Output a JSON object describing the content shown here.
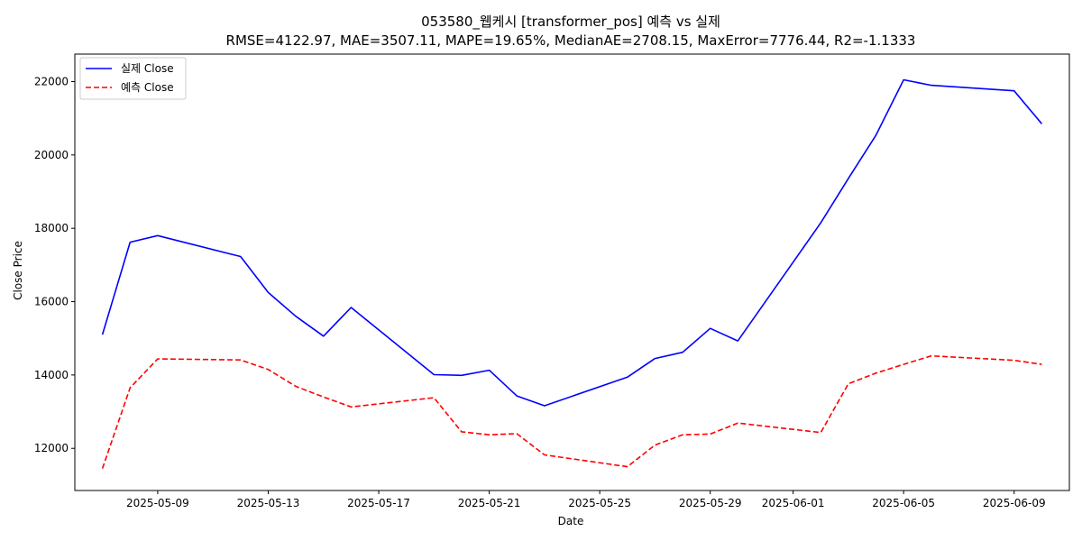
{
  "chart_data": {
    "type": "line",
    "title": "053580_웹케시 [transformer_pos] 예측 vs 실제",
    "subtitle": "RMSE=4122.97, MAE=3507.11, MAPE=19.65%, MedianAE=2708.15, MaxError=7776.44, R2=-1.1333",
    "xlabel": "Date",
    "ylabel": "Close Price",
    "xlim": [
      "2025-05-06",
      "2025-06-11"
    ],
    "ylim": [
      10850,
      22750
    ],
    "x_ticks": [
      "2025-05-09",
      "2025-05-13",
      "2025-05-17",
      "2025-05-21",
      "2025-05-25",
      "2025-05-29",
      "2025-06-01",
      "2025-06-05",
      "2025-06-09"
    ],
    "y_ticks": [
      12000,
      14000,
      16000,
      18000,
      20000,
      22000
    ],
    "grid": false,
    "legend_position": "top-left",
    "x": [
      "2025-05-07",
      "2025-05-08",
      "2025-05-09",
      "2025-05-12",
      "2025-05-13",
      "2025-05-14",
      "2025-05-15",
      "2025-05-16",
      "2025-05-19",
      "2025-05-20",
      "2025-05-21",
      "2025-05-22",
      "2025-05-23",
      "2025-05-26",
      "2025-05-27",
      "2025-05-28",
      "2025-05-29",
      "2025-05-30",
      "2025-06-02",
      "2025-06-03",
      "2025-06-04",
      "2025-06-05",
      "2025-06-06",
      "2025-06-09",
      "2025-06-10"
    ],
    "series": [
      {
        "name": "실제 Close",
        "color": "#0000ff",
        "style": "solid",
        "values": [
          15100,
          17620,
          17800,
          17230,
          16250,
          15600,
          15060,
          15840,
          14010,
          13990,
          14130,
          13430,
          13160,
          13940,
          14450,
          14620,
          15270,
          14930,
          18150,
          19360,
          20540,
          22050,
          21900,
          21750,
          20850
        ]
      },
      {
        "name": "예측 Close",
        "color": "#ff0000",
        "style": "dashed",
        "values": [
          11450,
          13650,
          14440,
          14410,
          14150,
          13690,
          13400,
          13130,
          13380,
          12450,
          12370,
          12400,
          11820,
          11500,
          12090,
          12370,
          12390,
          12690,
          12430,
          13760,
          14050,
          14290,
          14520,
          14400,
          14290
        ]
      }
    ]
  }
}
